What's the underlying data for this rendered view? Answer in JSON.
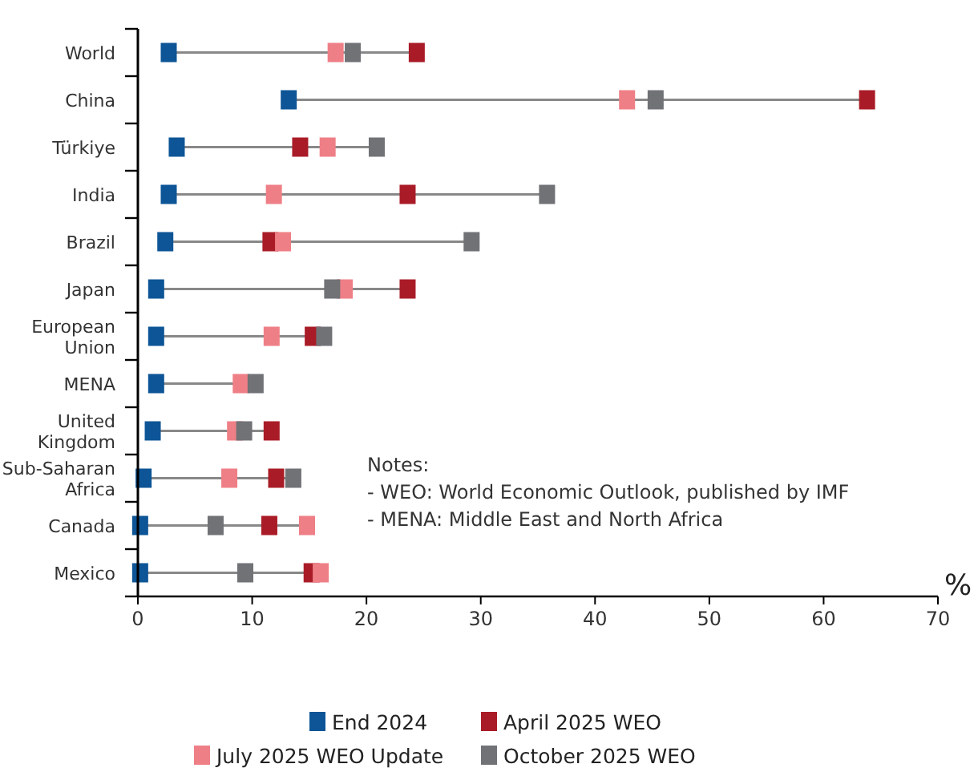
{
  "chart_data": {
    "type": "scatter",
    "orientation": "horizontal",
    "marker": "square",
    "legend": "bottom",
    "grid": false,
    "categories": [
      "World",
      "China",
      "Türkiye",
      "India",
      "Brazil",
      "Japan",
      "European Union",
      "MENA",
      "United Kingdom",
      "Sub-Saharan Africa",
      "Canada",
      "Mexico"
    ],
    "series": [
      {
        "name": "End 2024",
        "color": "#0d5596",
        "values": [
          2.7,
          13.2,
          3.4,
          2.7,
          2.4,
          1.6,
          1.6,
          1.6,
          1.3,
          0.5,
          0.2,
          0.2
        ]
      },
      {
        "name": "April 2025 WEO",
        "color": "#a91c27",
        "values": [
          24.4,
          63.8,
          14.2,
          23.6,
          11.6,
          23.6,
          15.3,
          null,
          11.7,
          12.1,
          11.5,
          15.2
        ]
      },
      {
        "name": "July 2025 WEO Update",
        "color": "#ef7f86",
        "values": [
          17.3,
          42.8,
          16.6,
          11.9,
          12.7,
          18.1,
          11.7,
          9.0,
          8.5,
          8.0,
          14.8,
          16.0
        ]
      },
      {
        "name": "October 2025 WEO",
        "color": "#707276",
        "values": [
          18.8,
          45.3,
          20.9,
          35.8,
          29.2,
          17.0,
          16.3,
          10.3,
          9.3,
          13.6,
          6.8,
          9.4
        ]
      }
    ],
    "xlim": [
      0,
      70
    ],
    "xticks": [
      0,
      10,
      20,
      30,
      40,
      50,
      60,
      70
    ],
    "xlabel": "%",
    "annotations": [
      "Notes:",
      "- WEO: World Economic Outlook, published by IMF",
      "- MENA: Middle East and North Africa"
    ]
  }
}
